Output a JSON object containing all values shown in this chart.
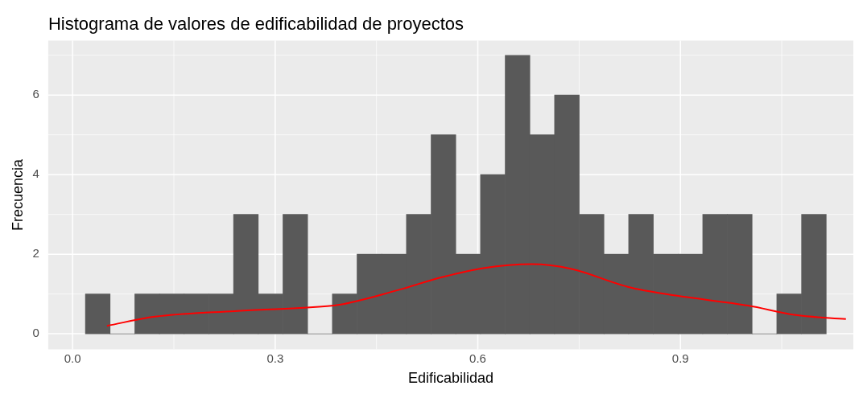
{
  "chart_data": {
    "type": "histogram",
    "title": "Histograma de valores de edificabilidad de proyectos",
    "xlabel": "Edificabilidad",
    "ylabel": "Frecuencia",
    "bins": [
      0.019,
      0.0556,
      0.0921,
      0.1287,
      0.1652,
      0.2018,
      0.2384,
      0.2749,
      0.3115,
      0.348,
      0.3846,
      0.4212,
      0.4577,
      0.4943,
      0.5308,
      0.5674,
      0.604,
      0.6405,
      0.6771,
      0.7136,
      0.7502,
      0.7868,
      0.8233,
      0.8599,
      0.8964,
      0.933,
      0.9696,
      1.0061,
      1.0427,
      1.0792,
      1.116
    ],
    "values": [
      1,
      0,
      1,
      1,
      1,
      1,
      3,
      1,
      3,
      0,
      1,
      2,
      2,
      3,
      5,
      2,
      4,
      7,
      5,
      6,
      3,
      2,
      3,
      2,
      2,
      3,
      3,
      0,
      1,
      3
    ],
    "color": "#595959",
    "series": [
      {
        "type": "line",
        "color": "#ff0000",
        "x": [
          0.051,
          0.122,
          0.24,
          0.336,
          0.395,
          0.478,
          0.549,
          0.608,
          0.68,
          0.739,
          0.822,
          0.893,
          1.0,
          1.071,
          1.145
        ],
        "values": [
          0.2,
          0.43,
          0.57,
          0.65,
          0.73,
          1.08,
          1.43,
          1.65,
          1.75,
          1.63,
          1.18,
          0.96,
          0.71,
          0.47,
          0.37
        ]
      }
    ],
    "xlim": [
      -0.036,
      1.156
    ],
    "xticks": [
      {
        "value": 0,
        "label": "0.0"
      },
      {
        "value": 0.3,
        "label": "0.3"
      },
      {
        "value": 0.6,
        "label": "0.6"
      },
      {
        "value": 0.9,
        "label": "0.9"
      }
    ],
    "ylim": [
      -0.39,
      7.37
    ],
    "yticks": [
      0,
      2,
      4,
      6
    ],
    "grid": true,
    "legend": false
  }
}
